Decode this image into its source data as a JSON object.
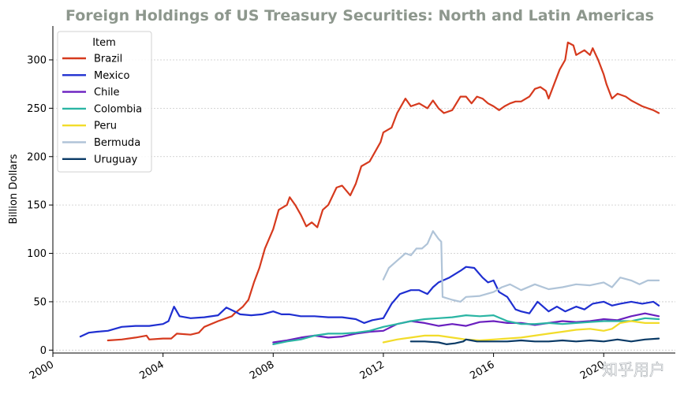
{
  "chart_data": {
    "type": "line",
    "title": "Foreign Holdings of US Treasury Securities: North and Latin Americas",
    "ylabel": "Billion Dollars",
    "xlabel": "",
    "xlim": [
      2000,
      2022.6
    ],
    "ylim": [
      -3,
      335
    ],
    "x_ticks": [
      "2000",
      "2004",
      "2008",
      "2012",
      "2016",
      "2020"
    ],
    "y_ticks": [
      "0",
      "50",
      "100",
      "150",
      "200",
      "250",
      "300"
    ],
    "grid": "horizontal dotted",
    "legend": {
      "title": "Item",
      "position": "top-left"
    },
    "series": [
      {
        "name": "Brazil",
        "color": "#d63a1e",
        "points": [
          [
            2002.0,
            10
          ],
          [
            2002.5,
            11
          ],
          [
            2003.0,
            13
          ],
          [
            2003.4,
            15
          ],
          [
            2003.5,
            11
          ],
          [
            2004.0,
            12
          ],
          [
            2004.3,
            12
          ],
          [
            2004.5,
            17
          ],
          [
            2005.0,
            16
          ],
          [
            2005.3,
            18
          ],
          [
            2005.5,
            24
          ],
          [
            2006.0,
            30
          ],
          [
            2006.5,
            35
          ],
          [
            2006.6,
            38
          ],
          [
            2006.9,
            45
          ],
          [
            2007.1,
            52
          ],
          [
            2007.3,
            70
          ],
          [
            2007.5,
            85
          ],
          [
            2007.7,
            105
          ],
          [
            2008.0,
            125
          ],
          [
            2008.2,
            145
          ],
          [
            2008.5,
            150
          ],
          [
            2008.6,
            158
          ],
          [
            2008.8,
            150
          ],
          [
            2009.0,
            140
          ],
          [
            2009.2,
            128
          ],
          [
            2009.4,
            132
          ],
          [
            2009.6,
            127
          ],
          [
            2009.8,
            145
          ],
          [
            2010.0,
            150
          ],
          [
            2010.3,
            168
          ],
          [
            2010.5,
            170
          ],
          [
            2010.8,
            160
          ],
          [
            2011.0,
            172
          ],
          [
            2011.2,
            190
          ],
          [
            2011.5,
            195
          ],
          [
            2011.7,
            205
          ],
          [
            2011.9,
            215
          ],
          [
            2012.0,
            225
          ],
          [
            2012.3,
            230
          ],
          [
            2012.5,
            245
          ],
          [
            2012.7,
            255
          ],
          [
            2012.8,
            260
          ],
          [
            2013.0,
            252
          ],
          [
            2013.3,
            255
          ],
          [
            2013.6,
            250
          ],
          [
            2013.8,
            258
          ],
          [
            2014.0,
            250
          ],
          [
            2014.2,
            245
          ],
          [
            2014.5,
            248
          ],
          [
            2014.8,
            262
          ],
          [
            2015.0,
            262
          ],
          [
            2015.2,
            255
          ],
          [
            2015.4,
            262
          ],
          [
            2015.6,
            260
          ],
          [
            2015.8,
            255
          ],
          [
            2016.0,
            252
          ],
          [
            2016.2,
            248
          ],
          [
            2016.4,
            252
          ],
          [
            2016.6,
            255
          ],
          [
            2016.8,
            257
          ],
          [
            2017.0,
            257
          ],
          [
            2017.3,
            262
          ],
          [
            2017.5,
            270
          ],
          [
            2017.7,
            272
          ],
          [
            2017.9,
            268
          ],
          [
            2018.0,
            260
          ],
          [
            2018.2,
            275
          ],
          [
            2018.4,
            290
          ],
          [
            2018.6,
            300
          ],
          [
            2018.7,
            318
          ],
          [
            2018.9,
            315
          ],
          [
            2019.0,
            305
          ],
          [
            2019.3,
            310
          ],
          [
            2019.5,
            305
          ],
          [
            2019.6,
            312
          ],
          [
            2019.8,
            300
          ],
          [
            2020.0,
            285
          ],
          [
            2020.1,
            275
          ],
          [
            2020.3,
            260
          ],
          [
            2020.5,
            265
          ],
          [
            2020.8,
            262
          ],
          [
            2021.0,
            258
          ],
          [
            2021.2,
            255
          ],
          [
            2021.4,
            252
          ],
          [
            2021.6,
            250
          ],
          [
            2021.8,
            248
          ],
          [
            2022.0,
            245
          ]
        ]
      },
      {
        "name": "Mexico",
        "color": "#1f2fd1",
        "points": [
          [
            2001.0,
            14
          ],
          [
            2001.3,
            18
          ],
          [
            2001.6,
            19
          ],
          [
            2002.0,
            20
          ],
          [
            2002.5,
            24
          ],
          [
            2003.0,
            25
          ],
          [
            2003.5,
            25
          ],
          [
            2004.0,
            27
          ],
          [
            2004.2,
            30
          ],
          [
            2004.4,
            45
          ],
          [
            2004.6,
            35
          ],
          [
            2005.0,
            33
          ],
          [
            2005.5,
            34
          ],
          [
            2006.0,
            36
          ],
          [
            2006.3,
            44
          ],
          [
            2006.6,
            40
          ],
          [
            2006.8,
            37
          ],
          [
            2007.2,
            36
          ],
          [
            2007.6,
            37
          ],
          [
            2008.0,
            40
          ],
          [
            2008.3,
            37
          ],
          [
            2008.6,
            37
          ],
          [
            2009.0,
            35
          ],
          [
            2009.5,
            35
          ],
          [
            2010.0,
            34
          ],
          [
            2010.5,
            34
          ],
          [
            2011.0,
            32
          ],
          [
            2011.3,
            28
          ],
          [
            2011.6,
            31
          ],
          [
            2012.0,
            33
          ],
          [
            2012.3,
            48
          ],
          [
            2012.6,
            58
          ],
          [
            2013.0,
            62
          ],
          [
            2013.3,
            62
          ],
          [
            2013.6,
            58
          ],
          [
            2013.8,
            65
          ],
          [
            2014.0,
            70
          ],
          [
            2014.4,
            75
          ],
          [
            2014.8,
            82
          ],
          [
            2015.0,
            86
          ],
          [
            2015.3,
            85
          ],
          [
            2015.6,
            75
          ],
          [
            2015.8,
            70
          ],
          [
            2016.0,
            72
          ],
          [
            2016.2,
            60
          ],
          [
            2016.5,
            55
          ],
          [
            2016.8,
            42
          ],
          [
            2017.0,
            40
          ],
          [
            2017.3,
            38
          ],
          [
            2017.6,
            50
          ],
          [
            2018.0,
            40
          ],
          [
            2018.3,
            45
          ],
          [
            2018.6,
            40
          ],
          [
            2019.0,
            45
          ],
          [
            2019.3,
            42
          ],
          [
            2019.6,
            48
          ],
          [
            2020.0,
            50
          ],
          [
            2020.3,
            46
          ],
          [
            2020.6,
            48
          ],
          [
            2021.0,
            50
          ],
          [
            2021.4,
            48
          ],
          [
            2021.8,
            50
          ],
          [
            2022.0,
            46
          ]
        ]
      },
      {
        "name": "Chile",
        "color": "#6a1fbf",
        "points": [
          [
            2008.0,
            8
          ],
          [
            2008.5,
            10
          ],
          [
            2009.0,
            13
          ],
          [
            2009.5,
            15
          ],
          [
            2010.0,
            13
          ],
          [
            2010.5,
            14
          ],
          [
            2011.0,
            17
          ],
          [
            2011.5,
            19
          ],
          [
            2012.0,
            20
          ],
          [
            2012.5,
            27
          ],
          [
            2013.0,
            30
          ],
          [
            2013.5,
            28
          ],
          [
            2014.0,
            25
          ],
          [
            2014.5,
            27
          ],
          [
            2015.0,
            25
          ],
          [
            2015.5,
            29
          ],
          [
            2016.0,
            30
          ],
          [
            2016.5,
            28
          ],
          [
            2017.0,
            28
          ],
          [
            2017.5,
            26
          ],
          [
            2018.0,
            28
          ],
          [
            2018.5,
            30
          ],
          [
            2019.0,
            29
          ],
          [
            2019.5,
            30
          ],
          [
            2020.0,
            32
          ],
          [
            2020.5,
            31
          ],
          [
            2021.0,
            35
          ],
          [
            2021.5,
            38
          ],
          [
            2022.0,
            35
          ]
        ]
      },
      {
        "name": "Colombia",
        "color": "#2ab5a3",
        "points": [
          [
            2008.0,
            6
          ],
          [
            2008.5,
            9
          ],
          [
            2009.0,
            11
          ],
          [
            2009.5,
            15
          ],
          [
            2010.0,
            17
          ],
          [
            2010.5,
            17
          ],
          [
            2011.0,
            18
          ],
          [
            2011.5,
            20
          ],
          [
            2012.0,
            24
          ],
          [
            2012.5,
            27
          ],
          [
            2013.0,
            30
          ],
          [
            2013.5,
            32
          ],
          [
            2014.0,
            33
          ],
          [
            2014.5,
            34
          ],
          [
            2015.0,
            36
          ],
          [
            2015.5,
            35
          ],
          [
            2016.0,
            36
          ],
          [
            2016.5,
            30
          ],
          [
            2017.0,
            27
          ],
          [
            2017.5,
            27
          ],
          [
            2018.0,
            28
          ],
          [
            2018.5,
            27
          ],
          [
            2019.0,
            28
          ],
          [
            2019.5,
            29
          ],
          [
            2020.0,
            30
          ],
          [
            2020.5,
            30
          ],
          [
            2021.0,
            30
          ],
          [
            2021.5,
            33
          ],
          [
            2022.0,
            32
          ]
        ]
      },
      {
        "name": "Peru",
        "color": "#f2dc2a",
        "points": [
          [
            2012.0,
            8
          ],
          [
            2012.5,
            11
          ],
          [
            2013.0,
            13
          ],
          [
            2013.5,
            15
          ],
          [
            2014.0,
            15
          ],
          [
            2014.5,
            13
          ],
          [
            2015.0,
            11
          ],
          [
            2015.5,
            10
          ],
          [
            2016.0,
            11
          ],
          [
            2016.5,
            12
          ],
          [
            2017.0,
            13
          ],
          [
            2017.5,
            15
          ],
          [
            2018.0,
            17
          ],
          [
            2018.5,
            19
          ],
          [
            2019.0,
            21
          ],
          [
            2019.5,
            22
          ],
          [
            2020.0,
            20
          ],
          [
            2020.3,
            22
          ],
          [
            2020.6,
            28
          ],
          [
            2021.0,
            30
          ],
          [
            2021.5,
            28
          ],
          [
            2022.0,
            28
          ]
        ]
      },
      {
        "name": "Bermuda",
        "color": "#b0c4d8",
        "points": [
          [
            2012.0,
            73
          ],
          [
            2012.2,
            85
          ],
          [
            2012.4,
            90
          ],
          [
            2012.6,
            95
          ],
          [
            2012.8,
            100
          ],
          [
            2013.0,
            98
          ],
          [
            2013.2,
            105
          ],
          [
            2013.4,
            105
          ],
          [
            2013.6,
            110
          ],
          [
            2013.8,
            123
          ],
          [
            2014.0,
            115
          ],
          [
            2014.1,
            112
          ],
          [
            2014.15,
            55
          ],
          [
            2014.5,
            52
          ],
          [
            2014.8,
            50
          ],
          [
            2015.0,
            55
          ],
          [
            2015.5,
            56
          ],
          [
            2016.0,
            60
          ],
          [
            2016.3,
            65
          ],
          [
            2016.6,
            68
          ],
          [
            2017.0,
            62
          ],
          [
            2017.5,
            68
          ],
          [
            2018.0,
            63
          ],
          [
            2018.5,
            65
          ],
          [
            2019.0,
            68
          ],
          [
            2019.5,
            67
          ],
          [
            2020.0,
            70
          ],
          [
            2020.3,
            65
          ],
          [
            2020.6,
            75
          ],
          [
            2021.0,
            72
          ],
          [
            2021.3,
            68
          ],
          [
            2021.6,
            72
          ],
          [
            2022.0,
            72
          ]
        ]
      },
      {
        "name": "Uruguay",
        "color": "#0a3a66",
        "points": [
          [
            2013.0,
            9
          ],
          [
            2013.5,
            9
          ],
          [
            2014.0,
            8
          ],
          [
            2014.3,
            6
          ],
          [
            2014.6,
            7
          ],
          [
            2014.9,
            9
          ],
          [
            2015.0,
            11
          ],
          [
            2015.2,
            10
          ],
          [
            2015.4,
            9
          ],
          [
            2016.0,
            9
          ],
          [
            2016.5,
            9
          ],
          [
            2017.0,
            10
          ],
          [
            2017.5,
            9
          ],
          [
            2018.0,
            9
          ],
          [
            2018.5,
            10
          ],
          [
            2019.0,
            9
          ],
          [
            2019.5,
            10
          ],
          [
            2020.0,
            9
          ],
          [
            2020.5,
            11
          ],
          [
            2021.0,
            9
          ],
          [
            2021.5,
            11
          ],
          [
            2022.0,
            12
          ]
        ]
      }
    ]
  },
  "watermark": "知乎用户"
}
